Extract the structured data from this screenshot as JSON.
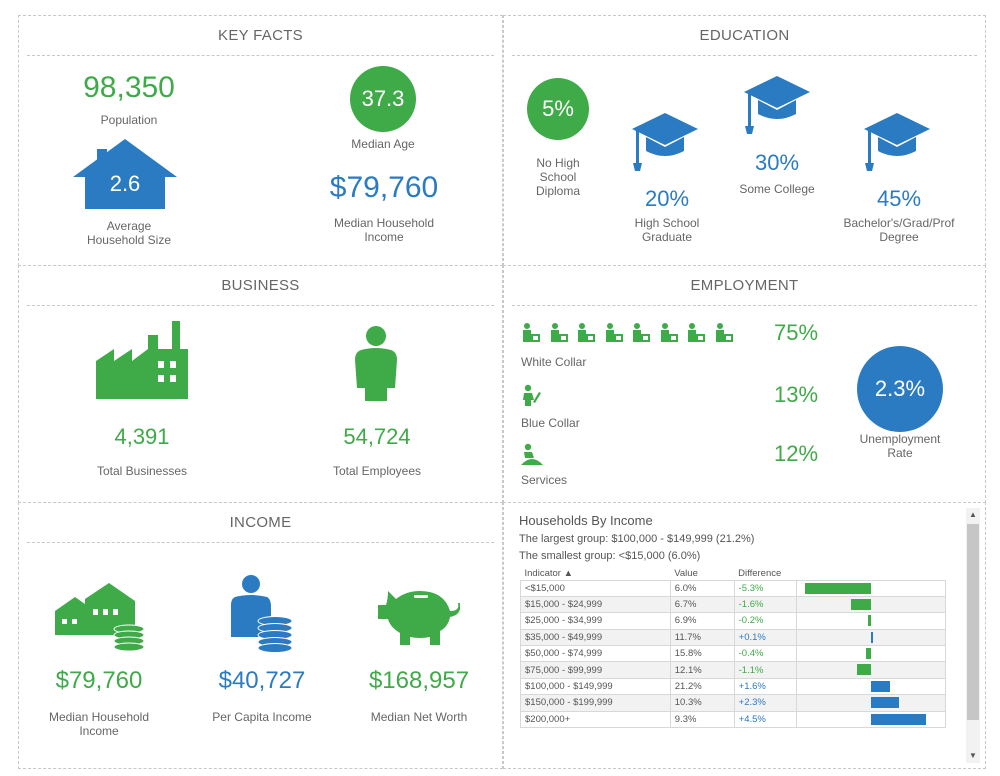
{
  "key_facts": {
    "title": "KEY FACTS",
    "population_value": "98,350",
    "population_label": "Population",
    "median_age_value": "37.3",
    "median_age_label": "Median Age",
    "household_size_value": "2.6",
    "household_size_label_1": "Average",
    "household_size_label_2": "Household Size",
    "median_income_value": "$79,760",
    "median_income_label_1": "Median Household",
    "median_income_label_2": "Income"
  },
  "education": {
    "title": "EDUCATION",
    "no_hs_value": "5%",
    "no_hs_label_1": "No High",
    "no_hs_label_2": "School",
    "no_hs_label_3": "Diploma",
    "hs_value": "20%",
    "hs_label_1": "High School",
    "hs_label_2": "Graduate",
    "some_college_value": "30%",
    "some_college_label": "Some College",
    "bachelors_value": "45%",
    "bachelors_label_1": "Bachelor's/Grad/Prof",
    "bachelors_label_2": "Degree"
  },
  "business": {
    "title": "BUSINESS",
    "businesses_value": "4,391",
    "businesses_label": "Total Businesses",
    "employees_value": "54,724",
    "employees_label": "Total Employees"
  },
  "employment": {
    "title": "EMPLOYMENT",
    "white_collar_value": "75%",
    "white_collar_label": "White Collar",
    "blue_collar_value": "13%",
    "blue_collar_label": "Blue Collar",
    "services_value": "12%",
    "services_label": "Services",
    "unemployment_value": "2.3%",
    "unemployment_label_1": "Unemployment",
    "unemployment_label_2": "Rate"
  },
  "income": {
    "title": "INCOME",
    "median_household_value": "$79,760",
    "median_household_label_1": "Median Household",
    "median_household_label_2": "Income",
    "per_capita_value": "$40,727",
    "per_capita_label": "Per Capita Income",
    "net_worth_value": "$168,957",
    "net_worth_label": "Median Net Worth"
  },
  "households_by_income": {
    "title": "Households By Income",
    "largest": "The largest group: $100,000 - $149,999 (21.2%)",
    "smallest": "The smallest group: <$15,000 (6.0%)",
    "col_indicator": "Indicator ▲",
    "col_value": "Value",
    "col_difference": "Difference",
    "rows": [
      {
        "indicator": "<$15,000",
        "value": "6.0%",
        "difference": "-5.3%",
        "diff": -5.3
      },
      {
        "indicator": "$15,000 - $24,999",
        "value": "6.7%",
        "difference": "-1.6%",
        "diff": -1.6
      },
      {
        "indicator": "$25,000 - $34,999",
        "value": "6.9%",
        "difference": "-0.2%",
        "diff": -0.2
      },
      {
        "indicator": "$35,000 - $49,999",
        "value": "11.7%",
        "difference": "+0.1%",
        "diff": 0.1
      },
      {
        "indicator": "$50,000 - $74,999",
        "value": "15.8%",
        "difference": "-0.4%",
        "diff": -0.4
      },
      {
        "indicator": "$75,000 - $99,999",
        "value": "12.1%",
        "difference": "-1.1%",
        "diff": -1.1
      },
      {
        "indicator": "$100,000 - $149,999",
        "value": "21.2%",
        "difference": "+1.6%",
        "diff": 1.6
      },
      {
        "indicator": "$150,000 - $199,999",
        "value": "10.3%",
        "difference": "+2.3%",
        "diff": 2.3
      },
      {
        "indicator": "$200,000+",
        "value": "9.3%",
        "difference": "+4.5%",
        "diff": 4.5
      }
    ]
  },
  "colors": {
    "green": "#3faa48",
    "blue": "#2a7bc1"
  },
  "icons": [
    "house-icon",
    "graduation-cap-icon",
    "factory-icon",
    "person-icon",
    "worker-icon",
    "houses-coins-icon",
    "person-coins-icon",
    "piggy-bank-icon"
  ]
}
